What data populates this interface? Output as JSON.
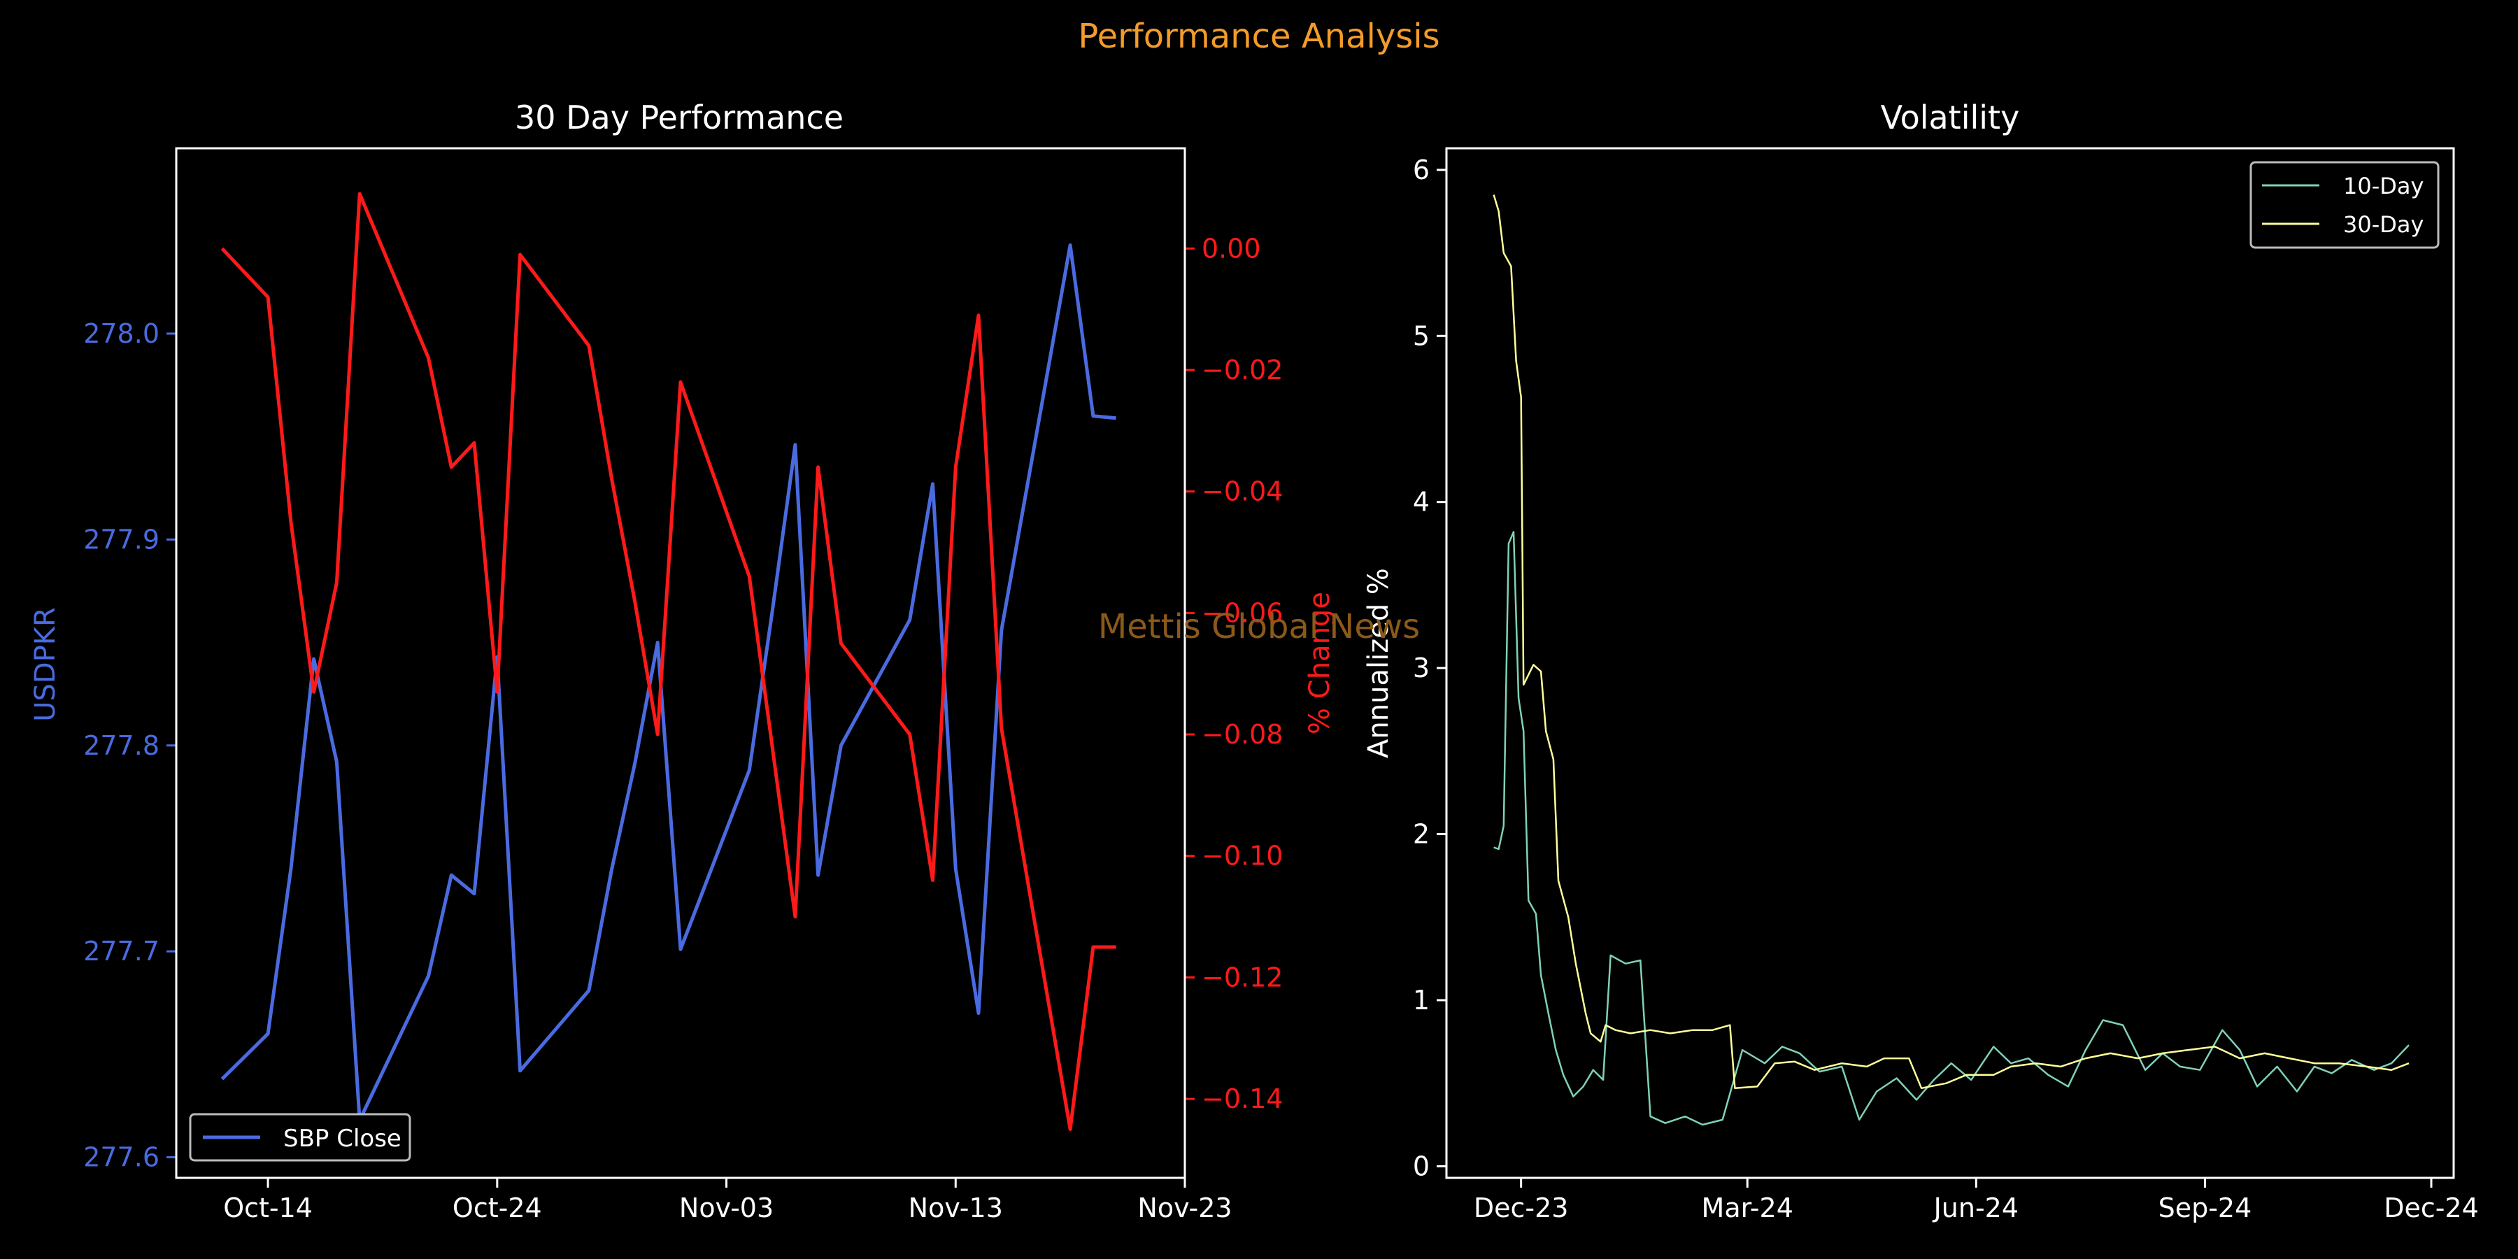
{
  "figure": {
    "suptitle": "Performance Analysis",
    "watermark": "Mettis Global News",
    "colors": {
      "background": "#000000",
      "suptitle": "#f39c2a",
      "watermark": "#8a5a1a",
      "axes": "#ffffff",
      "usd": "#4a6be0",
      "pct": "#ff1a1a",
      "vol10": "#7fd1b8",
      "vol30": "#ffff99"
    }
  },
  "chart_data": [
    {
      "type": "line",
      "title": "30 Day Performance",
      "ylabel": "USDPKR",
      "y2label": "% Change",
      "xlim": [
        "2024-10-10",
        "2024-11-23"
      ],
      "ylim": [
        277.59,
        278.09
      ],
      "y2lim": [
        -0.153,
        0.0165
      ],
      "x_ticks": [
        "Oct-14",
        "Oct-24",
        "Nov-03",
        "Nov-13",
        "Nov-23"
      ],
      "x_tick_dates": [
        "2024-10-14",
        "2024-10-24",
        "2024-11-03",
        "2024-11-13",
        "2024-11-23"
      ],
      "y_ticks": [
        277.6,
        277.7,
        277.8,
        277.9,
        278.0
      ],
      "y2_ticks": [
        0.0,
        -0.02,
        -0.04,
        -0.06,
        -0.08,
        -0.1,
        -0.12,
        -0.14
      ],
      "y2_tick_labels": [
        "0.00",
        "−0.02",
        "−0.04",
        "−0.06",
        "−0.08",
        "−0.10",
        "−0.12",
        "−0.14"
      ],
      "legend": {
        "position": "lower-left",
        "entries": [
          "SBP Close"
        ]
      },
      "x": [
        "2024-10-12",
        "2024-10-14",
        "2024-10-15",
        "2024-10-16",
        "2024-10-17",
        "2024-10-18",
        "2024-10-21",
        "2024-10-22",
        "2024-10-23",
        "2024-10-24",
        "2024-10-25",
        "2024-10-28",
        "2024-10-29",
        "2024-10-30",
        "2024-10-31",
        "2024-11-01",
        "2024-11-04",
        "2024-11-05",
        "2024-11-06",
        "2024-11-07",
        "2024-11-08",
        "2024-11-11",
        "2024-11-12",
        "2024-11-13",
        "2024-11-14",
        "2024-11-15",
        "2024-11-18",
        "2024-11-19",
        "2024-11-20"
      ],
      "series": [
        {
          "name": "SBP Close",
          "axis": "left",
          "values": [
            277.638,
            277.66,
            277.74,
            277.842,
            277.792,
            277.618,
            277.688,
            277.737,
            277.728,
            277.843,
            277.642,
            277.681,
            277.74,
            277.791,
            277.85,
            277.701,
            277.788,
            277.865,
            277.946,
            277.737,
            277.8,
            277.861,
            277.927,
            277.74,
            277.67,
            277.856,
            278.043,
            277.96,
            277.959
          ]
        },
        {
          "name": "% Change",
          "axis": "right",
          "values": [
            0.0,
            -0.008,
            -0.045,
            -0.073,
            -0.055,
            0.009,
            -0.018,
            -0.036,
            -0.032,
            -0.073,
            -0.001,
            -0.016,
            -0.038,
            -0.058,
            -0.08,
            -0.022,
            -0.054,
            -0.082,
            -0.11,
            -0.036,
            -0.065,
            -0.08,
            -0.104,
            -0.036,
            -0.011,
            -0.079,
            -0.145,
            -0.115,
            -0.115
          ]
        }
      ]
    },
    {
      "type": "line",
      "title": "Volatility",
      "ylabel": "Annualized %",
      "xlim": [
        "2023-11-01",
        "2024-12-10"
      ],
      "ylim": [
        -0.07,
        6.13
      ],
      "x_ticks": [
        "Dec-23",
        "Mar-24",
        "Jun-24",
        "Sep-24",
        "Dec-24"
      ],
      "x_tick_dates": [
        "2023-12-01",
        "2024-03-01",
        "2024-06-01",
        "2024-09-01",
        "2024-12-01"
      ],
      "y_ticks": [
        0,
        1,
        2,
        3,
        4,
        5,
        6
      ],
      "legend": {
        "position": "upper-right",
        "entries": [
          "10-Day",
          "30-Day"
        ]
      },
      "series": [
        {
          "name": "10-Day",
          "points": [
            [
              "2023-11-20",
              1.92
            ],
            [
              "2023-11-22",
              1.91
            ],
            [
              "2023-11-24",
              2.05
            ],
            [
              "2023-11-26",
              3.75
            ],
            [
              "2023-11-28",
              3.82
            ],
            [
              "2023-11-30",
              2.82
            ],
            [
              "2023-12-02",
              2.62
            ],
            [
              "2023-12-04",
              1.6
            ],
            [
              "2023-12-07",
              1.52
            ],
            [
              "2023-12-09",
              1.15
            ],
            [
              "2023-12-12",
              0.92
            ],
            [
              "2023-12-15",
              0.7
            ],
            [
              "2023-12-18",
              0.55
            ],
            [
              "2023-12-22",
              0.42
            ],
            [
              "2023-12-26",
              0.48
            ],
            [
              "2023-12-30",
              0.58
            ],
            [
              "2024-01-03",
              0.52
            ],
            [
              "2024-01-06",
              1.27
            ],
            [
              "2024-01-12",
              1.22
            ],
            [
              "2024-01-18",
              1.24
            ],
            [
              "2024-01-22",
              0.3
            ],
            [
              "2024-01-28",
              0.26
            ],
            [
              "2024-02-05",
              0.3
            ],
            [
              "2024-02-12",
              0.25
            ],
            [
              "2024-02-20",
              0.28
            ],
            [
              "2024-02-28",
              0.7
            ],
            [
              "2024-03-08",
              0.62
            ],
            [
              "2024-03-15",
              0.72
            ],
            [
              "2024-03-22",
              0.68
            ],
            [
              "2024-03-30",
              0.57
            ],
            [
              "2024-04-08",
              0.6
            ],
            [
              "2024-04-15",
              0.28
            ],
            [
              "2024-04-22",
              0.45
            ],
            [
              "2024-04-30",
              0.53
            ],
            [
              "2024-05-08",
              0.4
            ],
            [
              "2024-05-15",
              0.52
            ],
            [
              "2024-05-22",
              0.62
            ],
            [
              "2024-05-30",
              0.52
            ],
            [
              "2024-06-08",
              0.72
            ],
            [
              "2024-06-15",
              0.62
            ],
            [
              "2024-06-22",
              0.65
            ],
            [
              "2024-06-30",
              0.55
            ],
            [
              "2024-07-08",
              0.48
            ],
            [
              "2024-07-15",
              0.7
            ],
            [
              "2024-07-22",
              0.88
            ],
            [
              "2024-07-30",
              0.85
            ],
            [
              "2024-08-08",
              0.58
            ],
            [
              "2024-08-15",
              0.68
            ],
            [
              "2024-08-22",
              0.6
            ],
            [
              "2024-08-30",
              0.58
            ],
            [
              "2024-09-08",
              0.82
            ],
            [
              "2024-09-15",
              0.7
            ],
            [
              "2024-09-22",
              0.48
            ],
            [
              "2024-09-30",
              0.6
            ],
            [
              "2024-10-08",
              0.45
            ],
            [
              "2024-10-15",
              0.6
            ],
            [
              "2024-10-22",
              0.56
            ],
            [
              "2024-10-30",
              0.64
            ],
            [
              "2024-11-08",
              0.58
            ],
            [
              "2024-11-15",
              0.62
            ],
            [
              "2024-11-22",
              0.73
            ]
          ]
        },
        {
          "name": "30-Day",
          "points": [
            [
              "2023-11-20",
              5.85
            ],
            [
              "2023-11-22",
              5.75
            ],
            [
              "2023-11-24",
              5.5
            ],
            [
              "2023-11-27",
              5.42
            ],
            [
              "2023-11-29",
              4.85
            ],
            [
              "2023-12-01",
              4.63
            ],
            [
              "2023-12-02",
              2.9
            ],
            [
              "2023-12-06",
              3.02
            ],
            [
              "2023-12-09",
              2.98
            ],
            [
              "2023-12-11",
              2.62
            ],
            [
              "2023-12-14",
              2.45
            ],
            [
              "2023-12-16",
              1.72
            ],
            [
              "2023-12-20",
              1.5
            ],
            [
              "2023-12-23",
              1.22
            ],
            [
              "2023-12-27",
              0.92
            ],
            [
              "2023-12-29",
              0.8
            ],
            [
              "2024-01-02",
              0.75
            ],
            [
              "2024-01-04",
              0.85
            ],
            [
              "2024-01-08",
              0.82
            ],
            [
              "2024-01-14",
              0.8
            ],
            [
              "2024-01-22",
              0.82
            ],
            [
              "2024-01-30",
              0.8
            ],
            [
              "2024-02-08",
              0.82
            ],
            [
              "2024-02-16",
              0.82
            ],
            [
              "2024-02-23",
              0.85
            ],
            [
              "2024-02-25",
              0.47
            ],
            [
              "2024-03-05",
              0.48
            ],
            [
              "2024-03-12",
              0.62
            ],
            [
              "2024-03-20",
              0.63
            ],
            [
              "2024-03-28",
              0.58
            ],
            [
              "2024-04-08",
              0.62
            ],
            [
              "2024-04-18",
              0.6
            ],
            [
              "2024-04-25",
              0.65
            ],
            [
              "2024-05-05",
              0.65
            ],
            [
              "2024-05-10",
              0.47
            ],
            [
              "2024-05-20",
              0.5
            ],
            [
              "2024-05-28",
              0.55
            ],
            [
              "2024-06-08",
              0.55
            ],
            [
              "2024-06-15",
              0.6
            ],
            [
              "2024-06-25",
              0.62
            ],
            [
              "2024-07-05",
              0.6
            ],
            [
              "2024-07-15",
              0.65
            ],
            [
              "2024-07-25",
              0.68
            ],
            [
              "2024-08-05",
              0.65
            ],
            [
              "2024-08-15",
              0.68
            ],
            [
              "2024-08-25",
              0.7
            ],
            [
              "2024-09-05",
              0.72
            ],
            [
              "2024-09-15",
              0.65
            ],
            [
              "2024-09-25",
              0.68
            ],
            [
              "2024-10-05",
              0.65
            ],
            [
              "2024-10-15",
              0.62
            ],
            [
              "2024-10-25",
              0.62
            ],
            [
              "2024-11-05",
              0.6
            ],
            [
              "2024-11-15",
              0.58
            ],
            [
              "2024-11-22",
              0.62
            ]
          ]
        }
      ]
    }
  ]
}
